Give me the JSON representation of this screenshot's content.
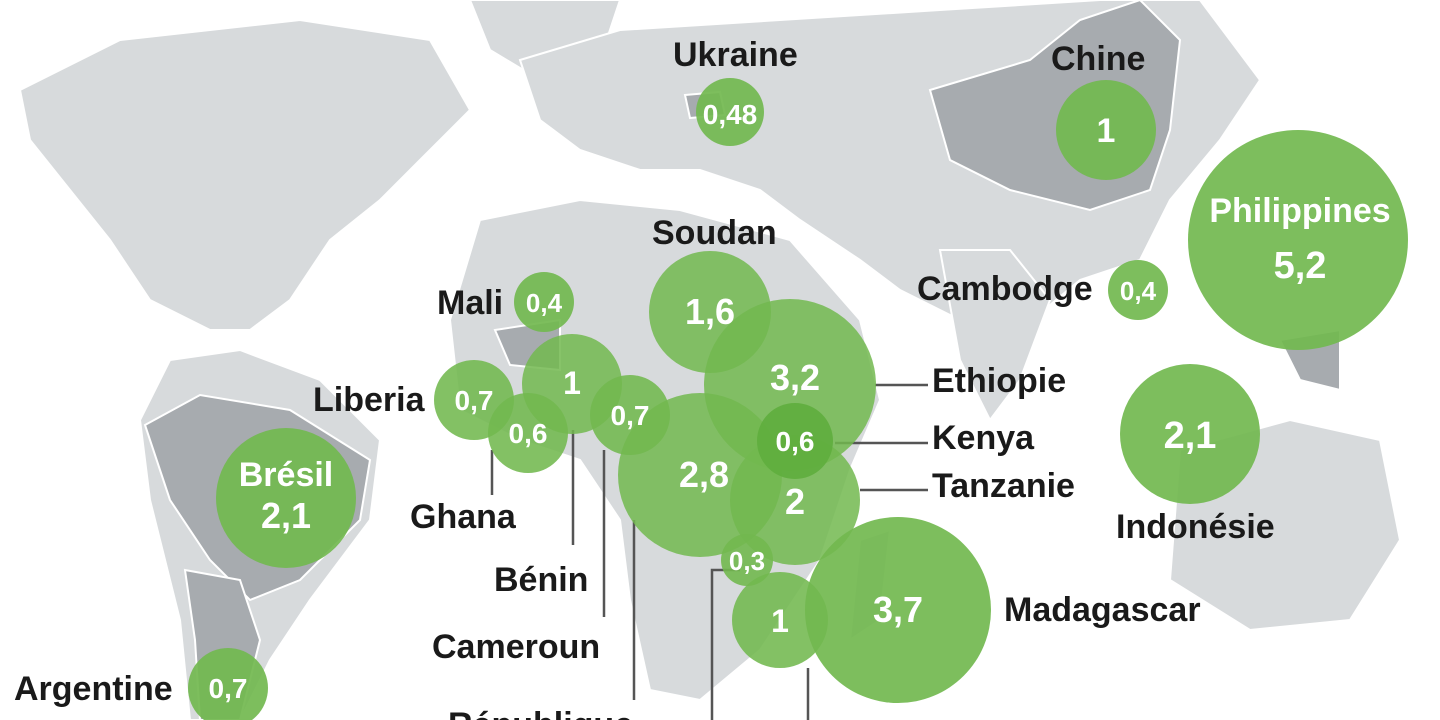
{
  "colors": {
    "bubble": "#72b84f",
    "bubble_text": "#ffffff",
    "land": "#d7dadc",
    "highlight_land": "#a7abaf",
    "label": "#1a1a1a"
  },
  "countries": [
    {
      "name": "Ukraine",
      "value": "0,48"
    },
    {
      "name": "Chine",
      "value": "1"
    },
    {
      "name": "Philippines",
      "value": "5,2"
    },
    {
      "name": "Soudan",
      "value": "1,6"
    },
    {
      "name": "Cambodge",
      "value": "0,4"
    },
    {
      "name": "Mali",
      "value": "0,4"
    },
    {
      "name": "Ethiopie",
      "value": "3,2"
    },
    {
      "name": "Liberia",
      "value": "0,7"
    },
    {
      "name": "Kenya",
      "value": "0,6"
    },
    {
      "name": "Indonésie",
      "value": "2,1"
    },
    {
      "name": "Tanzanie",
      "value": "2"
    },
    {
      "name": "Brésil",
      "value": "2,1"
    },
    {
      "name": "Ghana",
      "value": "0,6"
    },
    {
      "name": "Bénin",
      "value": "1"
    },
    {
      "name": "Cameroun",
      "value": "0,7"
    },
    {
      "name": "République",
      "value": "2,8"
    },
    {
      "name": "Madagascar",
      "value": "3,7"
    },
    {
      "name": "Argentine",
      "value": "0,7"
    },
    {
      "name": "",
      "value": "0,3"
    },
    {
      "name": "",
      "value": "1"
    }
  ]
}
